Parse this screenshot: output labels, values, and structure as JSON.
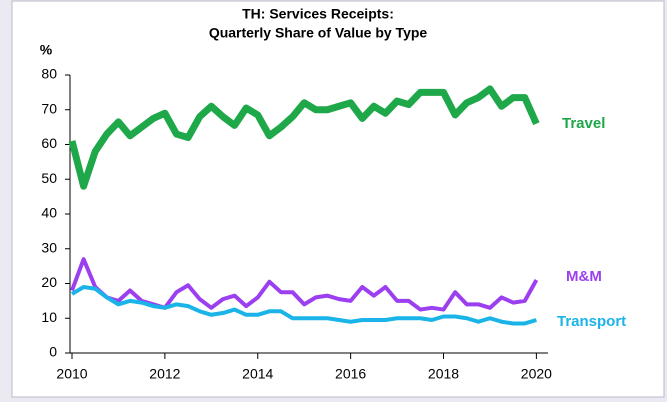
{
  "chart_data": {
    "type": "line",
    "title": [
      "TH: Services Receipts:",
      "Quarterly Share of Value by Type"
    ],
    "y_label": "%",
    "x": [
      2010,
      2010.25,
      2010.5,
      2010.75,
      2011,
      2011.25,
      2011.5,
      2011.75,
      2012,
      2012.25,
      2012.5,
      2012.75,
      2013,
      2013.25,
      2013.5,
      2013.75,
      2014,
      2014.25,
      2014.5,
      2014.75,
      2015,
      2015.25,
      2015.5,
      2015.75,
      2016,
      2016.25,
      2016.5,
      2016.75,
      2017,
      2017.25,
      2017.5,
      2017.75,
      2018,
      2018.25,
      2018.5,
      2018.75,
      2019,
      2019.25,
      2019.5,
      2019.75,
      2020
    ],
    "series": [
      {
        "name": "Travel",
        "color": "#1fa84a",
        "values": [
          61,
          48,
          58,
          63,
          66.5,
          62.5,
          65,
          67.5,
          69,
          63,
          62,
          68,
          71,
          68,
          65.5,
          70.5,
          68.5,
          62.5,
          65,
          68,
          72,
          70,
          70,
          71,
          72,
          67.5,
          71,
          69,
          72.5,
          71.5,
          75,
          75,
          75,
          68.5,
          72,
          73.5,
          76,
          71,
          73.5,
          73.5,
          66
        ]
      },
      {
        "name": "M&M",
        "color": "#9b3ff0",
        "values": [
          18,
          27,
          19,
          16,
          15,
          18,
          15,
          14,
          13,
          17.5,
          19.5,
          15.5,
          13,
          15.5,
          16.5,
          13.5,
          16,
          20.5,
          17.5,
          17.5,
          14,
          16,
          16.5,
          15.5,
          15,
          19,
          16.5,
          19,
          15,
          15,
          12.5,
          13,
          12.5,
          17.5,
          14,
          14,
          13,
          16,
          14.5,
          15,
          21
        ]
      },
      {
        "name": "Transport",
        "color": "#1ab4e8",
        "values": [
          17,
          19,
          18.5,
          16,
          14,
          15,
          14.5,
          13.5,
          13,
          14,
          13.5,
          12,
          11,
          11.5,
          12.5,
          11,
          11,
          12,
          12,
          10,
          10,
          10,
          10,
          9.5,
          9,
          9.5,
          9.5,
          9.5,
          10,
          10,
          10,
          9.5,
          10.5,
          10.5,
          10,
          9,
          10,
          9,
          8.5,
          8.5,
          9.5
        ]
      }
    ],
    "xlim": [
      2010,
      2020.25
    ],
    "xticks": [
      2010,
      2012,
      2014,
      2016,
      2018,
      2020
    ],
    "ylim": [
      0,
      80
    ],
    "yticks": [
      0,
      10,
      20,
      30,
      40,
      50,
      60,
      70,
      80
    ],
    "grid": false
  }
}
